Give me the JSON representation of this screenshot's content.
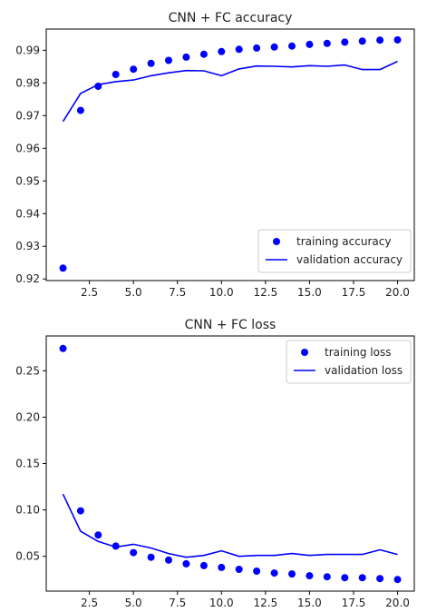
{
  "chart_data": [
    {
      "type": "scatter",
      "title": "CNN + FC accuracy",
      "xlabel": "",
      "ylabel": "",
      "xlim": [
        0.05,
        20.95
      ],
      "ylim": [
        0.9195,
        0.9965
      ],
      "grid": false,
      "legend_position": "lower-right",
      "x_ticks": [
        2.5,
        5.0,
        7.5,
        10.0,
        12.5,
        15.0,
        17.5,
        20.0
      ],
      "x_tick_labels": [
        "2.5",
        "5.0",
        "7.5",
        "10.0",
        "12.5",
        "15.0",
        "17.5",
        "20.0"
      ],
      "y_ticks": [
        0.92,
        0.93,
        0.94,
        0.95,
        0.96,
        0.97,
        0.98,
        0.99
      ],
      "y_tick_labels": [
        "0.92",
        "0.93",
        "0.94",
        "0.95",
        "0.96",
        "0.97",
        "0.98",
        "0.99"
      ],
      "series": [
        {
          "name": "training accuracy",
          "style": "dots",
          "color": "#0000ff",
          "x": [
            1,
            2,
            3,
            4,
            5,
            6,
            7,
            8,
            9,
            10,
            11,
            12,
            13,
            14,
            15,
            16,
            17,
            18,
            19,
            20
          ],
          "y": [
            0.9233,
            0.9716,
            0.979,
            0.9826,
            0.9842,
            0.986,
            0.9869,
            0.9879,
            0.9888,
            0.9896,
            0.9903,
            0.9907,
            0.991,
            0.9913,
            0.9918,
            0.9921,
            0.9925,
            0.9928,
            0.9931,
            0.9932
          ]
        },
        {
          "name": "validation accuracy",
          "style": "line",
          "color": "#0000ff",
          "x": [
            1,
            2,
            3,
            4,
            5,
            6,
            7,
            8,
            9,
            10,
            11,
            12,
            13,
            14,
            15,
            16,
            17,
            18,
            19,
            20
          ],
          "y": [
            0.9682,
            0.9768,
            0.9795,
            0.9804,
            0.9809,
            0.9822,
            0.9831,
            0.9838,
            0.9837,
            0.9822,
            0.9843,
            0.9852,
            0.9851,
            0.9849,
            0.9853,
            0.9851,
            0.9855,
            0.9841,
            0.9841,
            0.9866
          ]
        }
      ]
    },
    {
      "type": "scatter",
      "title": "CNN + FC loss",
      "xlabel": "",
      "ylabel": "",
      "xlim": [
        0.05,
        20.95
      ],
      "ylim": [
        0.0125,
        0.2875
      ],
      "grid": false,
      "legend_position": "upper-right",
      "x_ticks": [
        2.5,
        5.0,
        7.5,
        10.0,
        12.5,
        15.0,
        17.5,
        20.0
      ],
      "x_tick_labels": [
        "2.5",
        "5.0",
        "7.5",
        "10.0",
        "12.5",
        "15.0",
        "17.5",
        "20.0"
      ],
      "y_ticks": [
        0.05,
        0.1,
        0.15,
        0.2,
        0.25
      ],
      "y_tick_labels": [
        "0.05",
        "0.10",
        "0.15",
        "0.20",
        "0.25"
      ],
      "series": [
        {
          "name": "training loss",
          "style": "dots",
          "color": "#0000ff",
          "x": [
            1,
            2,
            3,
            4,
            5,
            6,
            7,
            8,
            9,
            10,
            11,
            12,
            13,
            14,
            15,
            16,
            17,
            18,
            19,
            20
          ],
          "y": [
            0.274,
            0.099,
            0.073,
            0.061,
            0.054,
            0.049,
            0.046,
            0.042,
            0.04,
            0.038,
            0.036,
            0.034,
            0.032,
            0.031,
            0.029,
            0.028,
            0.027,
            0.027,
            0.026,
            0.025
          ]
        },
        {
          "name": "validation loss",
          "style": "line",
          "color": "#0000ff",
          "x": [
            1,
            2,
            3,
            4,
            5,
            6,
            7,
            8,
            9,
            10,
            11,
            12,
            13,
            14,
            15,
            16,
            17,
            18,
            19,
            20
          ],
          "y": [
            0.117,
            0.077,
            0.066,
            0.06,
            0.063,
            0.059,
            0.053,
            0.049,
            0.051,
            0.056,
            0.05,
            0.051,
            0.051,
            0.053,
            0.051,
            0.052,
            0.052,
            0.052,
            0.057,
            0.052
          ]
        }
      ]
    }
  ]
}
